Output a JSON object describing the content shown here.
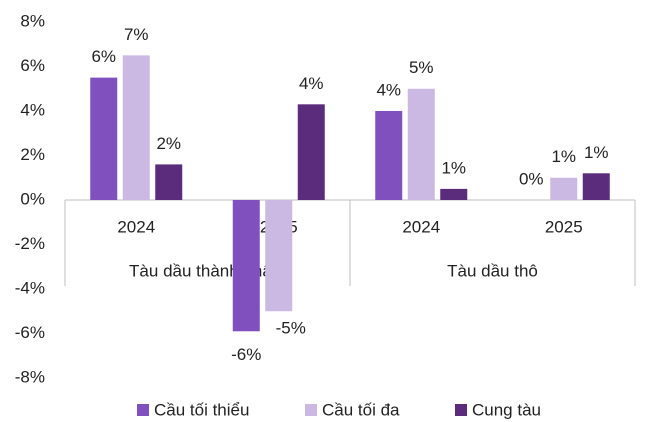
{
  "chart_data": {
    "type": "bar",
    "categories": [
      "2024",
      "2025",
      "2024",
      "2025"
    ],
    "category_groups": [
      "Tàu dầu thành phẩm",
      "Tàu dầu thành phẩm",
      "Tàu dầu thô",
      "Tàu dầu thô"
    ],
    "series": [
      {
        "name": "Cầu tối thiểu",
        "color": "#8150bf",
        "values": [
          5.5,
          -5.9,
          4.0,
          0
        ],
        "value_labels": [
          "6%",
          "-6%",
          "4%",
          "0%"
        ]
      },
      {
        "name": "Cầu tối đa",
        "color": "#cbb9e3",
        "values": [
          6.5,
          -5.0,
          5.0,
          1.0
        ],
        "value_labels": [
          "7%",
          "-5%",
          "5%",
          "1%"
        ]
      },
      {
        "name": "Cung tàu",
        "color": "#5a2c7b",
        "values": [
          1.6,
          4.3,
          0.5,
          1.2
        ],
        "value_labels": [
          "2%",
          "4%",
          "1%",
          "1%"
        ]
      }
    ],
    "ylim": [
      -8,
      8
    ],
    "yticks": [
      {
        "value": -8,
        "label": "-8%"
      },
      {
        "value": -6,
        "label": "-6%"
      },
      {
        "value": -4,
        "label": "-4%"
      },
      {
        "value": -2,
        "label": "-2%"
      },
      {
        "value": 0,
        "label": "0%"
      },
      {
        "value": 2,
        "label": "2%"
      },
      {
        "value": 4,
        "label": "4%"
      },
      {
        "value": 6,
        "label": "6%"
      },
      {
        "value": 8,
        "label": "8%"
      }
    ],
    "grid": false,
    "legend": "bottom"
  }
}
